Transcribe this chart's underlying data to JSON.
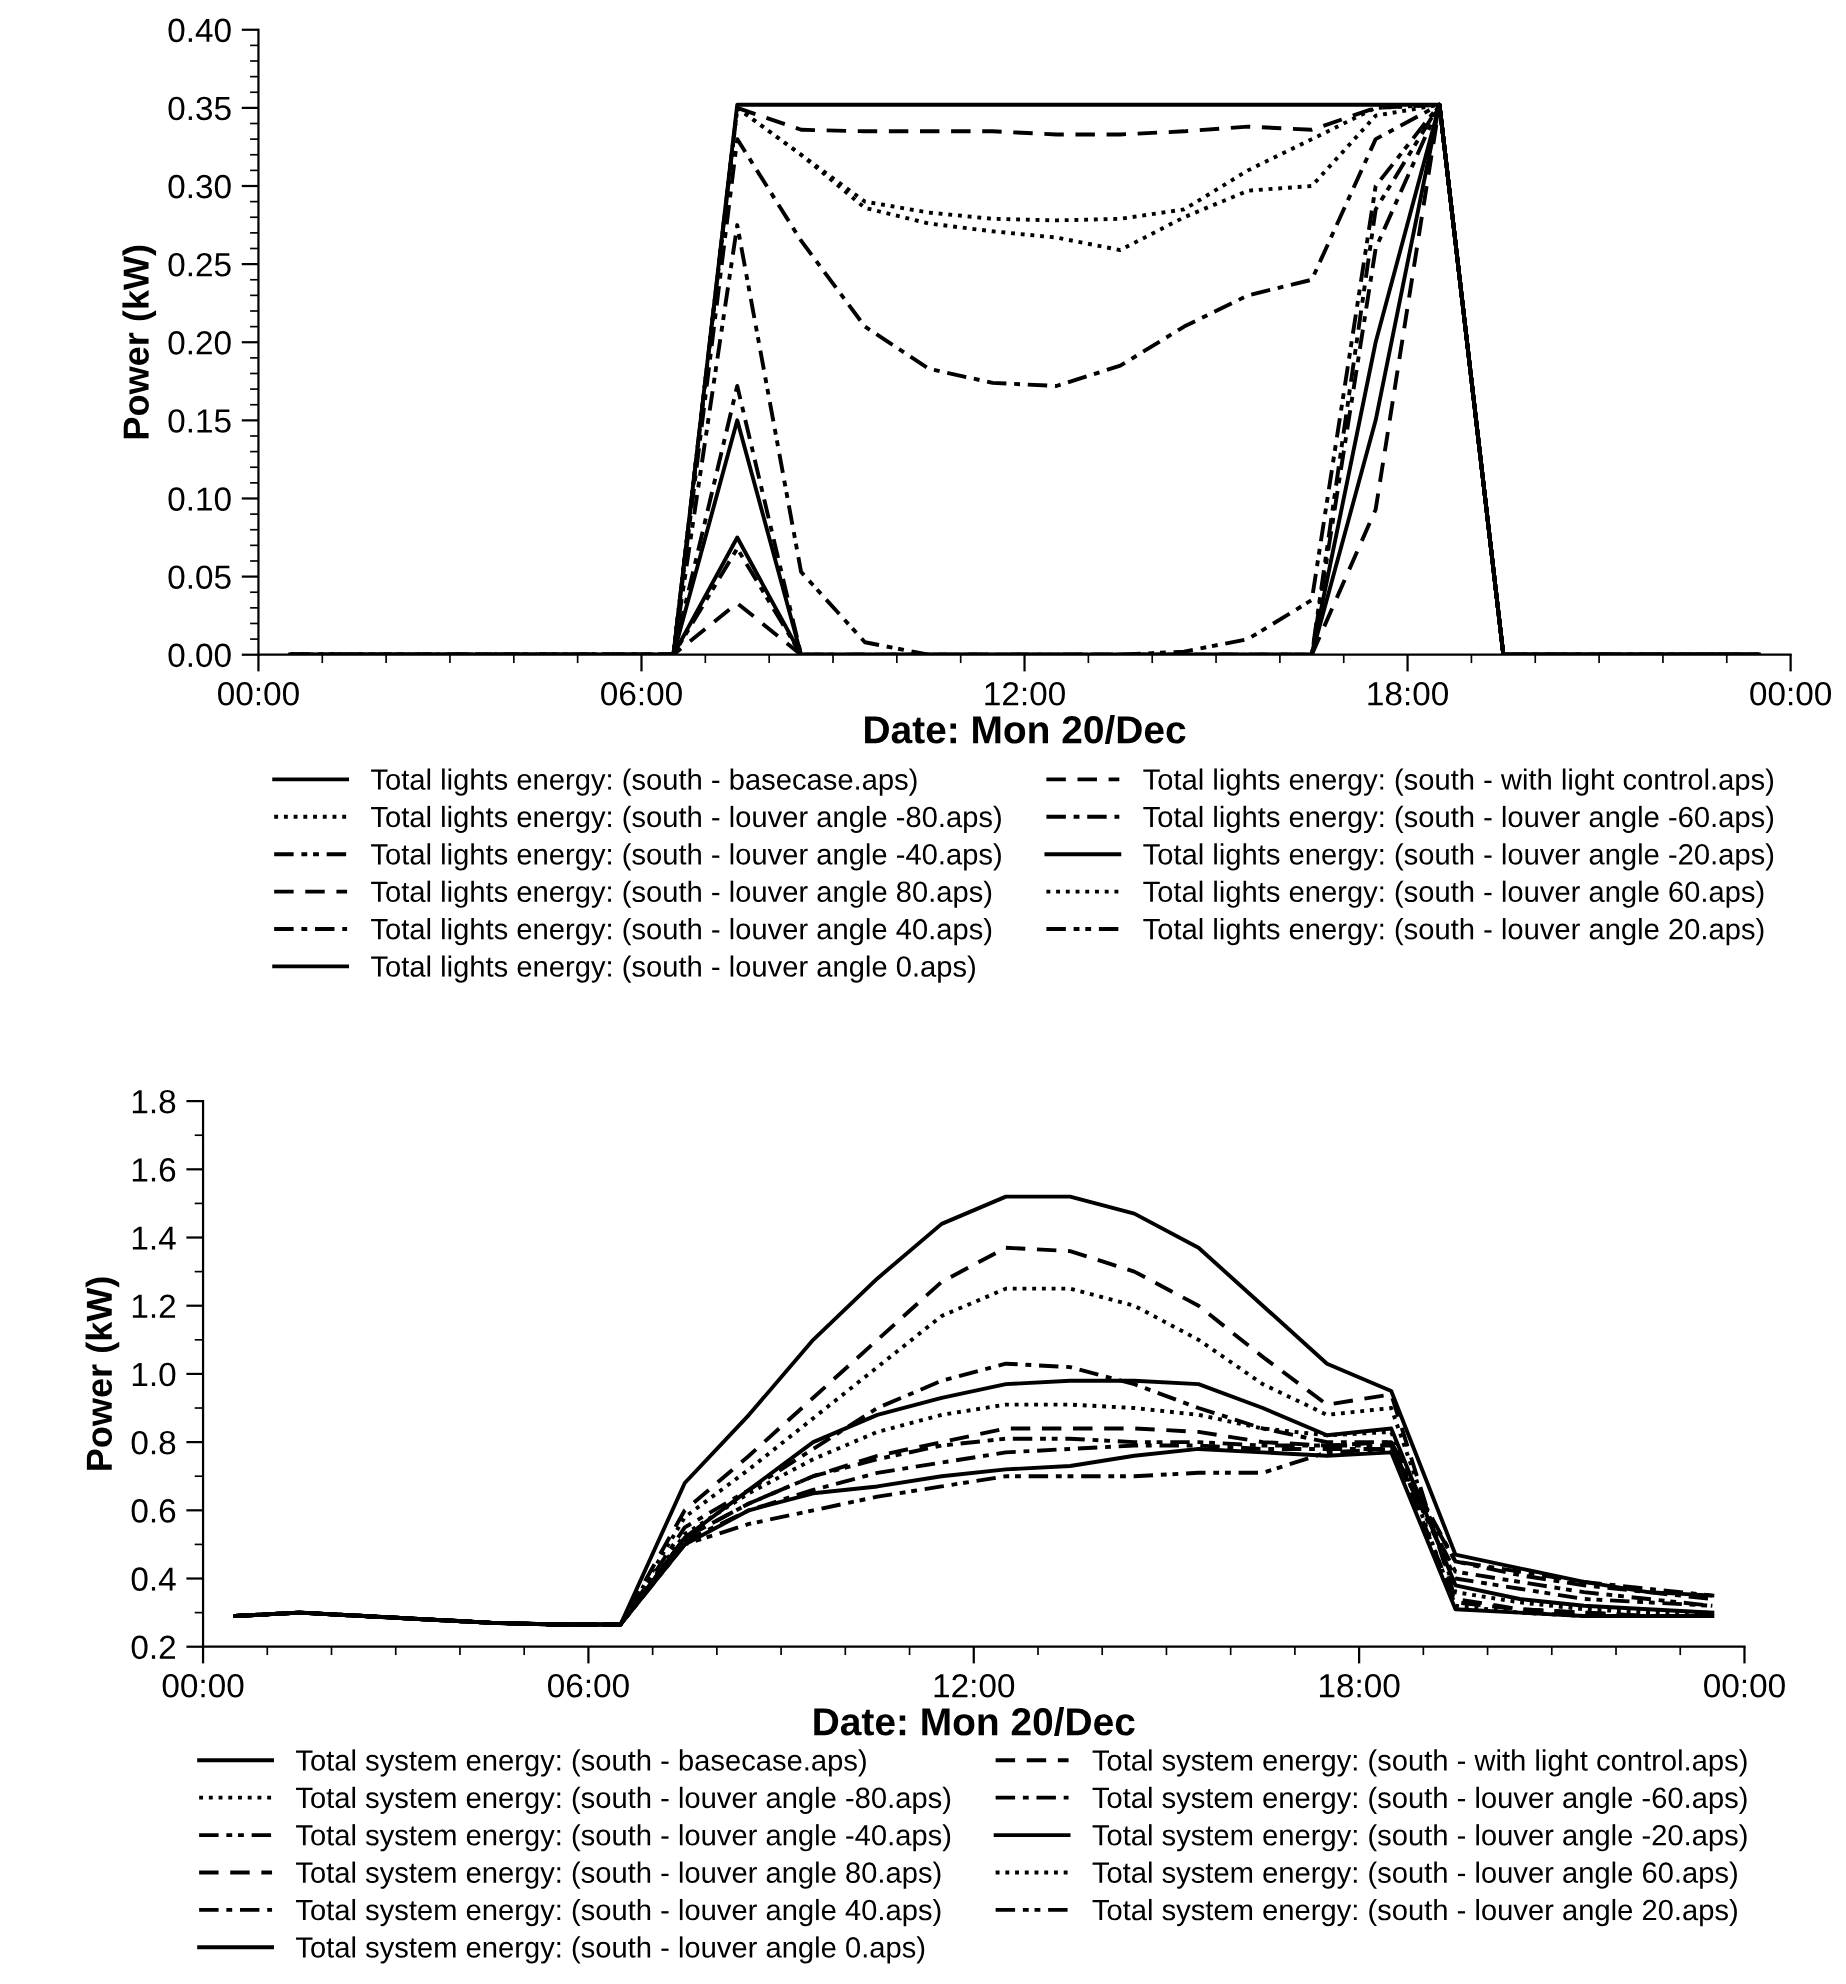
{
  "chart_data": [
    {
      "type": "line",
      "xlabel": "Date: Mon 20/Dec",
      "ylabel": "Power (kW)",
      "grid": false,
      "legend": "bottom",
      "marker": "none",
      "x": [
        0.5,
        1.5,
        2.5,
        3.5,
        4.5,
        5.5,
        6.5,
        7.5,
        8.5,
        9.5,
        10.5,
        11.5,
        12.5,
        13.5,
        14.5,
        15.5,
        16.5,
        17.5,
        18.5,
        19.5,
        20.5,
        21.5,
        22.5,
        23.5
      ],
      "xlim": [
        0,
        24
      ],
      "xticks": [
        {
          "value": 0,
          "label": "00:00"
        },
        {
          "value": 6,
          "label": "06:00"
        },
        {
          "value": 12,
          "label": "12:00"
        },
        {
          "value": 18,
          "label": "18:00"
        },
        {
          "value": 24,
          "label": "00:00"
        }
      ],
      "ylim": [
        0,
        0.4
      ],
      "yticks": [
        {
          "value": 0,
          "label": "0.00"
        },
        {
          "value": 0.05,
          "label": "0.05"
        },
        {
          "value": 0.1,
          "label": "0.10"
        },
        {
          "value": 0.15,
          "label": "0.15"
        },
        {
          "value": 0.2,
          "label": "0.20"
        },
        {
          "value": 0.25,
          "label": "0.25"
        },
        {
          "value": 0.3,
          "label": "0.30"
        },
        {
          "value": 0.35,
          "label": "0.35"
        },
        {
          "value": 0.4,
          "label": "0.40"
        }
      ],
      "series": [
        {
          "name": "Total lights energy: (south - basecase.aps)",
          "color": "#000000",
          "line_style": "solid",
          "values": [
            0,
            0,
            0,
            0,
            0,
            0,
            0,
            0.352,
            0.352,
            0.352,
            0.352,
            0.352,
            0.352,
            0.352,
            0.352,
            0.352,
            0.352,
            0.352,
            0.352,
            0,
            0,
            0,
            0,
            0
          ]
        },
        {
          "name": "Total lights energy: (south - with light control.aps)",
          "color": "#000000",
          "line_style": "dashed",
          "values": [
            0,
            0,
            0,
            0,
            0,
            0,
            0,
            0.35,
            0.336,
            0.335,
            0.335,
            0.335,
            0.333,
            0.333,
            0.335,
            0.338,
            0.336,
            0.35,
            0.352,
            0,
            0,
            0,
            0,
            0
          ]
        },
        {
          "name": "Total lights energy: (south - louver angle -80.aps)",
          "color": "#000000",
          "line_style": "dotted",
          "values": [
            0,
            0,
            0,
            0,
            0,
            0,
            0,
            0.35,
            0.32,
            0.29,
            0.283,
            0.279,
            0.278,
            0.279,
            0.285,
            0.31,
            0.33,
            0.35,
            0.352,
            0,
            0,
            0,
            0,
            0
          ]
        },
        {
          "name": "Total lights energy: (south - louver angle -60.aps)",
          "color": "#000000",
          "line_style": "dashdot",
          "values": [
            0,
            0,
            0,
            0,
            0,
            0,
            0,
            0.33,
            0.265,
            0.21,
            0.183,
            0.174,
            0.172,
            0.185,
            0.21,
            0.23,
            0.24,
            0.33,
            0.352,
            0,
            0,
            0,
            0,
            0
          ]
        },
        {
          "name": "Total lights energy: (south - louver angle -40.aps)",
          "color": "#000000",
          "line_style": "dashdotdot",
          "values": [
            0,
            0,
            0,
            0,
            0,
            0,
            0,
            0.275,
            0.053,
            0.008,
            0,
            0,
            0,
            0,
            0.002,
            0.01,
            0.035,
            0.3,
            0.352,
            0,
            0,
            0,
            0,
            0
          ]
        },
        {
          "name": "Total lights energy: (south - louver angle -20.aps)",
          "color": "#000000",
          "line_style": "solid",
          "values": [
            0,
            0,
            0,
            0,
            0,
            0,
            0,
            0.15,
            0,
            0,
            0,
            0,
            0,
            0,
            0,
            0,
            0,
            0.2,
            0.352,
            0,
            0,
            0,
            0,
            0
          ]
        },
        {
          "name": "Total lights energy: (south - louver angle 80.aps)",
          "color": "#000000",
          "line_style": "dashed",
          "values": [
            0,
            0,
            0,
            0,
            0,
            0,
            0,
            0.033,
            0,
            0,
            0,
            0,
            0,
            0,
            0,
            0,
            0,
            0.093,
            0.352,
            0,
            0,
            0,
            0,
            0
          ]
        },
        {
          "name": "Total lights energy: (south - louver angle 60.aps)",
          "color": "#000000",
          "line_style": "dotted",
          "values": [
            0,
            0,
            0,
            0,
            0,
            0,
            0,
            0.35,
            0.32,
            0.286,
            0.276,
            0.271,
            0.267,
            0.259,
            0.28,
            0.297,
            0.3,
            0.345,
            0.352,
            0,
            0,
            0,
            0,
            0
          ]
        },
        {
          "name": "Total lights energy: (south - louver angle 40.aps)",
          "color": "#000000",
          "line_style": "dashdot",
          "values": [
            0,
            0,
            0,
            0,
            0,
            0,
            0,
            0.172,
            0,
            0,
            0,
            0,
            0,
            0,
            0,
            0,
            0,
            0.26,
            0.352,
            0,
            0,
            0,
            0,
            0
          ]
        },
        {
          "name": "Total lights energy: (south - louver angle 20.aps)",
          "color": "#000000",
          "line_style": "dashdotdot",
          "values": [
            0,
            0,
            0,
            0,
            0,
            0,
            0,
            0.068,
            0,
            0,
            0,
            0,
            0,
            0,
            0,
            0,
            0,
            0.285,
            0.352,
            0,
            0,
            0,
            0,
            0
          ]
        },
        {
          "name": "Total lights energy: (south - louver angle 0.aps)",
          "color": "#000000",
          "line_style": "solid",
          "values": [
            0,
            0,
            0,
            0,
            0,
            0,
            0,
            0.075,
            0,
            0,
            0,
            0,
            0,
            0,
            0,
            0,
            0,
            0.15,
            0.352,
            0,
            0,
            0,
            0,
            0
          ]
        }
      ]
    },
    {
      "type": "line",
      "xlabel": "Date: Mon 20/Dec",
      "ylabel": "Power (kW)",
      "grid": false,
      "legend": "bottom",
      "marker": "none",
      "x": [
        0.5,
        1.5,
        2.5,
        3.5,
        4.5,
        5.5,
        6.5,
        7.5,
        8.5,
        9.5,
        10.5,
        11.5,
        12.5,
        13.5,
        14.5,
        15.5,
        16.5,
        17.5,
        18.5,
        19.5,
        20.5,
        21.5,
        22.5,
        23.5
      ],
      "xlim": [
        0,
        24
      ],
      "xticks": [
        {
          "value": 0,
          "label": "00:00"
        },
        {
          "value": 6,
          "label": "06:00"
        },
        {
          "value": 12,
          "label": "12:00"
        },
        {
          "value": 18,
          "label": "18:00"
        },
        {
          "value": 24,
          "label": "00:00"
        }
      ],
      "ylim": [
        0.2,
        1.8
      ],
      "yticks": [
        0.2,
        0.4,
        0.6,
        0.8,
        {
          "value": 1,
          "label": "1.0"
        },
        1.2,
        1.4,
        1.6,
        1.8
      ],
      "series": [
        {
          "name": "Total system energy: (south - basecase.aps)",
          "color": "#000000",
          "line_style": "solid",
          "values": [
            0.29,
            0.3,
            0.29,
            0.28,
            0.27,
            0.265,
            0.265,
            0.68,
            0.88,
            1.1,
            1.28,
            1.44,
            1.52,
            1.52,
            1.47,
            1.37,
            1.2,
            1.03,
            0.95,
            0.47,
            0.43,
            0.39,
            0.36,
            0.35
          ]
        },
        {
          "name": "Total system energy: (south - with light control.aps)",
          "color": "#000000",
          "line_style": "dashed",
          "values": [
            0.29,
            0.3,
            0.29,
            0.28,
            0.27,
            0.265,
            0.265,
            0.6,
            0.76,
            0.93,
            1.1,
            1.27,
            1.37,
            1.36,
            1.3,
            1.2,
            1.05,
            0.91,
            0.94,
            0.34,
            0.31,
            0.3,
            0.29,
            0.29
          ]
        },
        {
          "name": "Total system energy: (south - louver angle -80.aps)",
          "color": "#000000",
          "line_style": "dotted",
          "values": [
            0.29,
            0.3,
            0.29,
            0.28,
            0.27,
            0.265,
            0.265,
            0.58,
            0.72,
            0.87,
            1.02,
            1.17,
            1.25,
            1.25,
            1.2,
            1.1,
            0.97,
            0.88,
            0.9,
            0.36,
            0.33,
            0.31,
            0.3,
            0.3
          ]
        },
        {
          "name": "Total system energy: (south - louver angle -60.aps)",
          "color": "#000000",
          "line_style": "dashdot",
          "values": [
            0.29,
            0.3,
            0.29,
            0.28,
            0.27,
            0.265,
            0.265,
            0.55,
            0.66,
            0.78,
            0.9,
            0.98,
            1.03,
            1.02,
            0.97,
            0.9,
            0.84,
            0.8,
            0.8,
            0.45,
            0.41,
            0.38,
            0.36,
            0.34
          ]
        },
        {
          "name": "Total system energy: (south - louver angle -40.aps)",
          "color": "#000000",
          "line_style": "dashdotdot",
          "values": [
            0.29,
            0.3,
            0.29,
            0.28,
            0.27,
            0.265,
            0.265,
            0.5,
            0.56,
            0.6,
            0.64,
            0.67,
            0.7,
            0.7,
            0.7,
            0.71,
            0.71,
            0.77,
            0.78,
            0.42,
            0.39,
            0.36,
            0.34,
            0.32
          ]
        },
        {
          "name": "Total system energy: (south - louver angle -20.aps)",
          "color": "#000000",
          "line_style": "solid",
          "values": [
            0.29,
            0.3,
            0.29,
            0.28,
            0.27,
            0.265,
            0.265,
            0.5,
            0.6,
            0.65,
            0.67,
            0.7,
            0.72,
            0.73,
            0.76,
            0.78,
            0.77,
            0.76,
            0.77,
            0.31,
            0.3,
            0.29,
            0.29,
            0.29
          ]
        },
        {
          "name": "Total system energy: (south - louver angle 80.aps)",
          "color": "#000000",
          "line_style": "dashed",
          "values": [
            0.29,
            0.3,
            0.29,
            0.28,
            0.27,
            0.265,
            0.265,
            0.52,
            0.62,
            0.7,
            0.76,
            0.8,
            0.84,
            0.84,
            0.84,
            0.83,
            0.8,
            0.79,
            0.8,
            0.33,
            0.31,
            0.3,
            0.29,
            0.29
          ]
        },
        {
          "name": "Total system energy: (south - louver angle 60.aps)",
          "color": "#000000",
          "line_style": "dotted",
          "values": [
            0.29,
            0.3,
            0.29,
            0.28,
            0.27,
            0.265,
            0.265,
            0.53,
            0.65,
            0.75,
            0.83,
            0.88,
            0.91,
            0.91,
            0.9,
            0.88,
            0.84,
            0.82,
            0.83,
            0.32,
            0.3,
            0.29,
            0.29,
            0.29
          ]
        },
        {
          "name": "Total system energy: (south - louver angle 40.aps)",
          "color": "#000000",
          "line_style": "dashdot",
          "values": [
            0.29,
            0.3,
            0.29,
            0.28,
            0.27,
            0.265,
            0.265,
            0.51,
            0.6,
            0.66,
            0.71,
            0.74,
            0.77,
            0.78,
            0.79,
            0.79,
            0.78,
            0.78,
            0.78,
            0.45,
            0.42,
            0.39,
            0.37,
            0.35
          ]
        },
        {
          "name": "Total system energy: (south - louver angle 20.aps)",
          "color": "#000000",
          "line_style": "dashdotdot",
          "values": [
            0.29,
            0.3,
            0.29,
            0.28,
            0.27,
            0.265,
            0.265,
            0.52,
            0.62,
            0.7,
            0.75,
            0.79,
            0.81,
            0.81,
            0.8,
            0.8,
            0.79,
            0.79,
            0.79,
            0.4,
            0.37,
            0.34,
            0.33,
            0.32
          ]
        },
        {
          "name": "Total system energy: (south - louver angle 0.aps)",
          "color": "#000000",
          "line_style": "solid",
          "values": [
            0.29,
            0.3,
            0.29,
            0.28,
            0.27,
            0.265,
            0.265,
            0.52,
            0.66,
            0.8,
            0.88,
            0.93,
            0.97,
            0.98,
            0.98,
            0.97,
            0.9,
            0.82,
            0.84,
            0.38,
            0.34,
            0.32,
            0.31,
            0.3
          ]
        }
      ]
    }
  ]
}
